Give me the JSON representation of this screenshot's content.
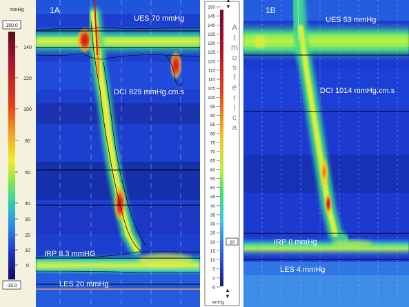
{
  "chart_data": [
    {
      "type": "heatmap",
      "panel_label": "1A",
      "unit_label": "mmHg",
      "scale_max_box": "150.0",
      "scale_min_box": "-10.0",
      "scale_ticks": [
        "140",
        "120",
        "100",
        "80",
        "60",
        "40",
        "30",
        "20",
        "10",
        "0"
      ],
      "annotations": {
        "ues": "UES 70 mmHg",
        "dci": "DCI 829 mmHg.cm.s",
        "irp": "IRP 8.3 mmHG",
        "les": "LES 20 mmHg"
      },
      "values": {
        "ues_mmHg": 70,
        "dci_mmHg_cm_s": 829,
        "irp_mmHg": 8.3,
        "les_mmHg": 20
      },
      "colormap": [
        "#1a0b6e",
        "#1d3fd6",
        "#2c7cf0",
        "#33c6e8",
        "#3ee68b",
        "#c6f03a",
        "#f6e62a",
        "#f79a1e",
        "#e2241a",
        "#9e0e2e"
      ]
    },
    {
      "type": "heatmap",
      "panel_label": "1B",
      "unit_label": "mmHg",
      "vertical_label": "Atmosférica",
      "marker_value": "20",
      "scale_ticks": [
        "150",
        "145",
        "140",
        "135",
        "130",
        "125",
        "120",
        "115",
        "110",
        "105",
        "100",
        "95",
        "90",
        "85",
        "80",
        "75",
        "70",
        "65",
        "60",
        "55",
        "50",
        "45",
        "40",
        "35",
        "30",
        "25",
        "20",
        "15",
        "10",
        "5",
        "0",
        "-5"
      ],
      "annotations": {
        "ues": "UES 53 mmHg",
        "dci": "DCI 1014 mmHg.cm.s",
        "irp": "IRP 0 mmHg",
        "les": "LES 4 mmHg"
      },
      "values": {
        "ues_mmHg": 53,
        "dci_mmHg_cm_s": 1014,
        "irp_mmHg": 0,
        "les_mmHg": 4
      }
    }
  ]
}
